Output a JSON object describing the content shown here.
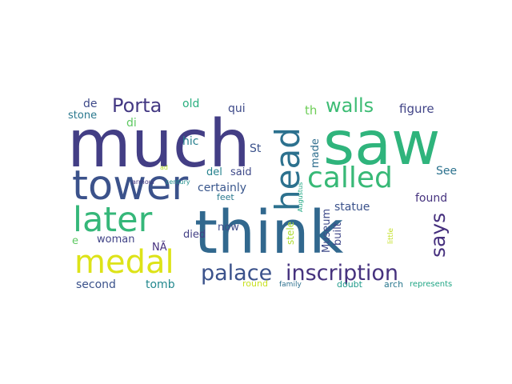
{
  "words": [
    {
      "text": "much",
      "color": "#433e85"
    },
    {
      "text": "saw",
      "color": "#2fb47c"
    },
    {
      "text": "think",
      "color": "#31688e"
    },
    {
      "text": "tower",
      "color": "#3b528b"
    },
    {
      "text": "head",
      "color": "#2c718e"
    },
    {
      "text": "called",
      "color": "#38b977"
    },
    {
      "text": "later",
      "color": "#35b779"
    },
    {
      "text": "medal",
      "color": "#dde318"
    },
    {
      "text": "palace",
      "color": "#3b528b"
    },
    {
      "text": "inscription",
      "color": "#46327e"
    },
    {
      "text": "Porta",
      "color": "#443983"
    },
    {
      "text": "walls",
      "color": "#3dbc74"
    },
    {
      "text": "says",
      "color": "#46307e"
    },
    {
      "text": "figure",
      "color": "#414487"
    },
    {
      "text": "de",
      "color": "#3e4989"
    },
    {
      "text": "stone",
      "color": "#2a788e"
    },
    {
      "text": "di",
      "color": "#5ec962"
    },
    {
      "text": "old",
      "color": "#29af7f"
    },
    {
      "text": "qui",
      "color": "#3e4a89"
    },
    {
      "text": "th",
      "color": "#6ece58"
    },
    {
      "text": "hic",
      "color": "#277f8e"
    },
    {
      "text": "St",
      "color": "#3b528b"
    },
    {
      "text": "made",
      "color": "#2e6e8e"
    },
    {
      "text": "See",
      "color": "#2c728e"
    },
    {
      "text": "ad",
      "color": "#b5de2b"
    },
    {
      "text": "armour",
      "color": "#453781"
    },
    {
      "text": "century",
      "color": "#21908d"
    },
    {
      "text": "del",
      "color": "#26828e"
    },
    {
      "text": "said",
      "color": "#3e4989"
    },
    {
      "text": "certainly",
      "color": "#39568c"
    },
    {
      "text": "Augustus",
      "color": "#22a884"
    },
    {
      "text": "statue",
      "color": "#3b528b"
    },
    {
      "text": "found",
      "color": "#46337f"
    },
    {
      "text": "feet",
      "color": "#29798e"
    },
    {
      "text": "Museum",
      "color": "#3e4a89"
    },
    {
      "text": "built",
      "color": "#3f4788"
    },
    {
      "text": "stele",
      "color": "#addc30"
    },
    {
      "text": "little",
      "color": "#c2df23"
    },
    {
      "text": "woman",
      "color": "#414487"
    },
    {
      "text": "died",
      "color": "#423f85"
    },
    {
      "text": "now",
      "color": "#3e4c8a"
    },
    {
      "text": "e",
      "color": "#5ec962"
    },
    {
      "text": "NÃ",
      "color": "#46307e"
    },
    {
      "text": "second",
      "color": "#3b528b"
    },
    {
      "text": "tomb",
      "color": "#23888e"
    },
    {
      "text": "round",
      "color": "#c8e020"
    },
    {
      "text": "family",
      "color": "#2d708e"
    },
    {
      "text": "doubt",
      "color": "#1f9a8a"
    },
    {
      "text": "arch",
      "color": "#2a788e"
    },
    {
      "text": "represents",
      "color": "#21a685"
    }
  ]
}
